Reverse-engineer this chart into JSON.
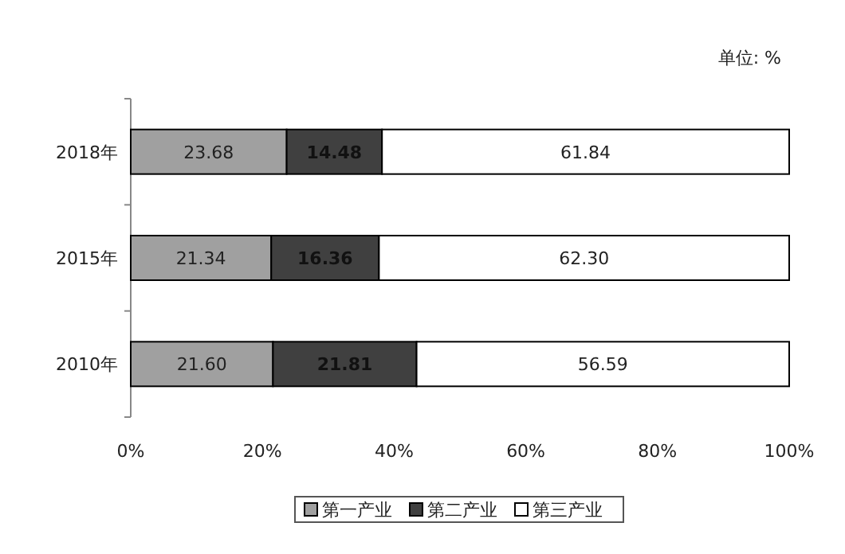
{
  "chart_data": {
    "type": "bar",
    "orientation": "horizontal",
    "stacked": true,
    "categories": [
      "2018年",
      "2015年",
      "2010年"
    ],
    "series": [
      {
        "name": "第一产业",
        "color": "#a0a0a0",
        "values": [
          23.68,
          21.34,
          21.6
        ],
        "value_labels": [
          "23.68",
          "21.34",
          "21.60"
        ]
      },
      {
        "name": "第二产业",
        "color": "#404040",
        "values": [
          14.48,
          16.36,
          21.81
        ],
        "value_labels": [
          "14.48",
          "16.36",
          "21.81"
        ]
      },
      {
        "name": "第三产业",
        "color": "#ffffff",
        "values": [
          61.84,
          62.3,
          56.59
        ],
        "value_labels": [
          "61.84",
          "62.30",
          "56.59"
        ]
      }
    ],
    "xlim": [
      0,
      100
    ],
    "xticks": [
      {
        "value": 0,
        "label": "0%"
      },
      {
        "value": 20,
        "label": "20%"
      },
      {
        "value": 40,
        "label": "40%"
      },
      {
        "value": 60,
        "label": "60%"
      },
      {
        "value": 80,
        "label": "80%"
      },
      {
        "value": 100,
        "label": "100%"
      }
    ],
    "grid": false,
    "legend": "bottom",
    "annotations": [
      "单位: %"
    ]
  }
}
